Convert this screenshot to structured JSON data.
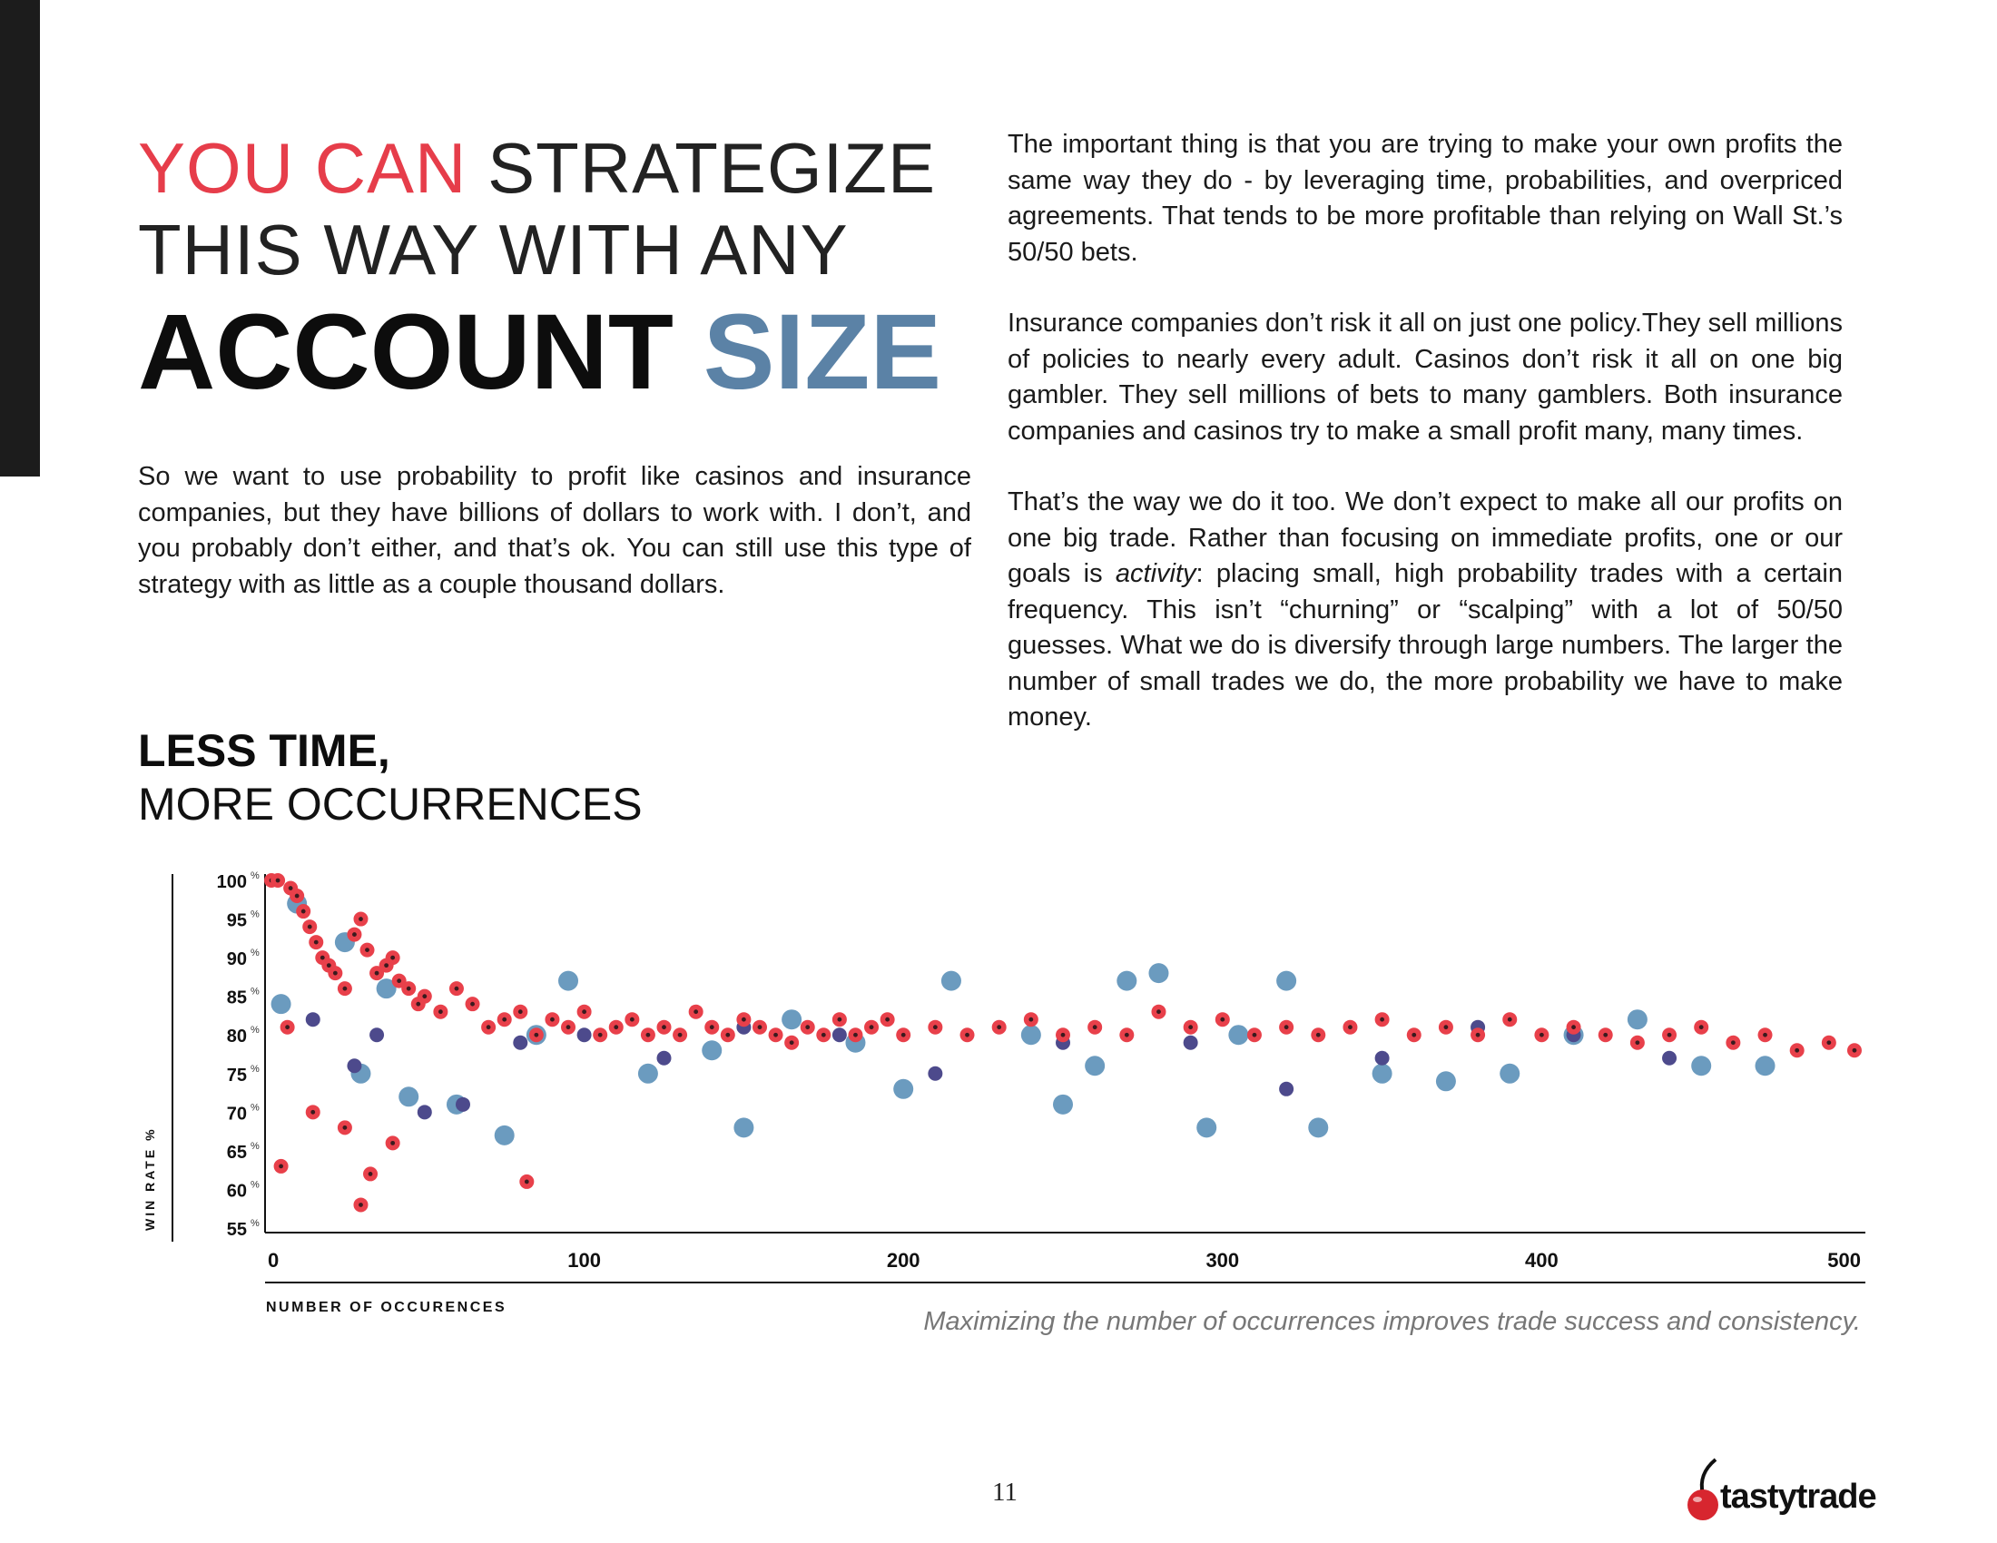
{
  "headline": {
    "part1_red": "YOU CAN",
    "part1_rest": "STRATEGIZE",
    "line2": "THIS WAY WITH ANY",
    "line3_black": "ACCOUNT",
    "line3_blue": "SIZE"
  },
  "left_paragraph": "So we want to use probability to profit like casinos and insurance companies, but they have billions of dollars to work with. I don’t, and you probably don’t either, and that’s ok. You can still use this type of strategy with as little as a couple thousand dollars.",
  "right_column": {
    "p1": "The important thing is that you are trying to make your own profits the same way they do - by leveraging time, probabilities, and overpriced agreements. That tends to be more profitable than relying on Wall St.’s 50/50 bets.",
    "p2": "Insurance companies don’t risk it all on just one policy.They sell millions of policies to nearly every adult. Casinos don’t risk it all on one big gambler. They sell millions of bets to many gamblers. Both insurance companies and casinos try to make a small profit many, many times.",
    "p3_before": "That’s the way we do it too. We don’t expect to make all our profits on one big trade. Rather than focusing on immediate profits, one or our goals is ",
    "p3_italic": "activity",
    "p3_after": ": placing small, high probability trades with a certain frequency. This isn’t “churning” or “scalping” with a lot of 50/50 guesses. What we do is diversify through large numbers. The larger the number of small trades we do, the more probability we have to make money."
  },
  "subheading": {
    "bold": "LESS TIME,",
    "normal": "MORE OCCURRENCES"
  },
  "chart_data": {
    "type": "scatter",
    "ylabel": "WIN RATE %",
    "xlabel": "NUMBER OF OCCURENCES",
    "x_ticks": [
      "0",
      "100",
      "200",
      "300",
      "400",
      "500"
    ],
    "y_ticks": [
      "100",
      "95",
      "90",
      "85",
      "80",
      "75",
      "70",
      "65",
      "60",
      "55"
    ],
    "y_tick_suffix": "%",
    "xlim": [
      0,
      500
    ],
    "ylim": [
      55,
      100
    ],
    "colors": {
      "red": "#e8404a",
      "blue": "#6b9bbf",
      "purple": "#4d4a8c",
      "dark": "#3a1a1e"
    },
    "series": [
      {
        "color": "red",
        "x": [
          2,
          4,
          8,
          10,
          12,
          14,
          16,
          18,
          20,
          22,
          25,
          28,
          30,
          32,
          35,
          38,
          40,
          42,
          45,
          48,
          50,
          55,
          60,
          65,
          70,
          75,
          80,
          85,
          90,
          95,
          100,
          105,
          110,
          115,
          120,
          125,
          130,
          135,
          140,
          145,
          150,
          155,
          160,
          165,
          170,
          175,
          180,
          185,
          190,
          195,
          200,
          210,
          220,
          230,
          240,
          250,
          260,
          270,
          280,
          290,
          300,
          310,
          320,
          330,
          340,
          350,
          360,
          370,
          380,
          390,
          400,
          410,
          420,
          430,
          440,
          450,
          460,
          470,
          480,
          490,
          498,
          5,
          7,
          15,
          25,
          30,
          33,
          40,
          82
        ],
        "y": [
          100,
          100,
          99,
          98,
          96,
          94,
          92,
          90,
          89,
          88,
          86,
          93,
          95,
          91,
          88,
          89,
          90,
          87,
          86,
          84,
          85,
          83,
          86,
          84,
          81,
          82,
          83,
          80,
          82,
          81,
          83,
          80,
          81,
          82,
          80,
          81,
          80,
          83,
          81,
          80,
          82,
          81,
          80,
          79,
          81,
          80,
          82,
          80,
          81,
          82,
          80,
          81,
          80,
          81,
          82,
          80,
          81,
          80,
          83,
          81,
          82,
          80,
          81,
          80,
          81,
          82,
          80,
          81,
          80,
          82,
          80,
          81,
          80,
          79,
          80,
          81,
          79,
          80,
          78,
          79,
          78,
          63,
          81,
          70,
          68,
          58,
          62,
          66,
          61
        ]
      }
    ],
    "blue_points": {
      "x": [
        5,
        10,
        25,
        30,
        38,
        45,
        60,
        75,
        85,
        95,
        120,
        140,
        150,
        165,
        185,
        200,
        215,
        240,
        250,
        260,
        270,
        280,
        295,
        305,
        320,
        330,
        350,
        370,
        390,
        410,
        430,
        450,
        470
      ],
      "y": [
        84,
        97,
        92,
        75,
        86,
        72,
        71,
        67,
        80,
        87,
        75,
        78,
        68,
        82,
        79,
        73,
        87,
        80,
        71,
        76,
        87,
        88,
        68,
        80,
        87,
        68,
        75,
        74,
        75,
        80,
        82,
        76,
        76
      ]
    },
    "purple_points": {
      "x": [
        15,
        28,
        35,
        50,
        62,
        80,
        100,
        125,
        150,
        180,
        210,
        250,
        290,
        320,
        350,
        380,
        410,
        440
      ],
      "y": [
        82,
        76,
        80,
        70,
        71,
        79,
        80,
        77,
        81,
        80,
        75,
        79,
        79,
        73,
        77,
        81,
        80,
        77
      ]
    }
  },
  "caption": "Maximizing the number of occurrences improves trade success and consistency.",
  "page_number": "11",
  "logo": {
    "text": "tastytrade",
    "colors": {
      "cherry": "#d7262f",
      "stem": "#111111"
    }
  }
}
